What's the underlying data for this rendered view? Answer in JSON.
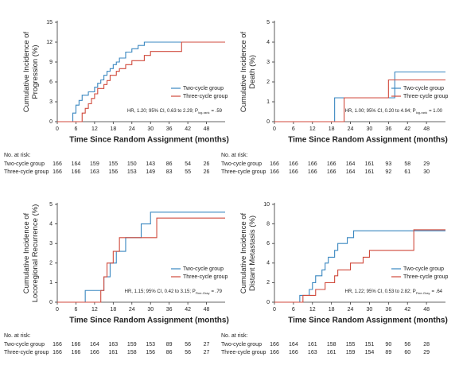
{
  "chart_data": [
    {
      "type": "line",
      "ylabel": [
        "Cumulative Incidence of",
        "Progression (%)"
      ],
      "xlabel": "Time Since Random Assignment (months)",
      "xlim": [
        0,
        54
      ],
      "xticks": [
        0,
        6,
        12,
        18,
        24,
        30,
        36,
        42,
        48
      ],
      "ylim": [
        0,
        15
      ],
      "yticks": [
        0,
        3,
        6,
        9,
        12,
        15
      ],
      "legend": "lower right",
      "series": [
        {
          "name": "Two-cycle group",
          "color": "#3a87c0",
          "x": [
            0,
            5,
            6,
            7,
            8,
            10,
            12,
            13,
            14,
            15,
            16,
            17,
            18,
            19,
            20,
            22,
            24,
            26,
            28,
            54
          ],
          "values": [
            0,
            1.3,
            2.5,
            3.2,
            4,
            4.5,
            5.2,
            5.8,
            6.3,
            7,
            7.6,
            8,
            8.6,
            9,
            9.6,
            10.5,
            11,
            11.5,
            12,
            12
          ]
        },
        {
          "name": "Three-cycle group",
          "color": "#d04a3c",
          "x": [
            0,
            8,
            9,
            10,
            11,
            12,
            13,
            15,
            16,
            17,
            19,
            20,
            22,
            24,
            28,
            30,
            40,
            54
          ],
          "values": [
            0,
            1.3,
            2,
            2.7,
            3.5,
            4.2,
            5,
            5.6,
            6.2,
            7,
            7.6,
            8,
            8.6,
            9.2,
            10,
            10.6,
            12,
            12
          ]
        }
      ],
      "annotation": {
        "text": "HR, 1.20; 95% CI, 0.63 to 2.29; P",
        "subscript": "log-rank",
        "tail": "= .59"
      },
      "at_risk": {
        "title": "No. at risk:",
        "rows": [
          {
            "name": "Two-cycle group",
            "values": [
              166,
              164,
              159,
              155,
              150,
              143,
              86,
              54,
              26
            ]
          },
          {
            "name": "Three-cycle group",
            "values": [
              166,
              166,
              163,
              156,
              153,
              149,
              83,
              55,
              26
            ]
          }
        ]
      }
    },
    {
      "type": "line",
      "ylabel": [
        "Cumulative Incidence of",
        "Death (%)"
      ],
      "xlabel": "Time Since Random Assignment (months)",
      "xlim": [
        0,
        54
      ],
      "xticks": [
        0,
        6,
        12,
        18,
        24,
        30,
        36,
        42,
        48
      ],
      "ylim": [
        0,
        5
      ],
      "yticks": [
        0,
        1,
        2,
        3,
        4,
        5
      ],
      "legend": "lower right",
      "series": [
        {
          "name": "Two-cycle group",
          "color": "#3a87c0",
          "x": [
            0,
            19,
            38,
            54
          ],
          "values": [
            0,
            1.2,
            2.5,
            2.5
          ]
        },
        {
          "name": "Three-cycle group",
          "color": "#d04a3c",
          "x": [
            0,
            22,
            36,
            54
          ],
          "values": [
            0,
            1.2,
            2.1,
            2.1
          ]
        }
      ],
      "annotation": {
        "text": "HR, 1.00; 95% CI, 0.20 to 4.94; P",
        "subscript": "log-rank",
        "tail": "= 1.00"
      },
      "at_risk": {
        "title": "No. at risk:",
        "rows": [
          {
            "name": "Two-cycle group",
            "values": [
              166,
              166,
              166,
              166,
              164,
              161,
              93,
              58,
              29
            ]
          },
          {
            "name": "Three-cycle group",
            "values": [
              166,
              166,
              166,
              166,
              164,
              161,
              92,
              61,
              30
            ]
          }
        ]
      }
    },
    {
      "type": "line",
      "ylabel": [
        "Cumulative Incidence of",
        "Locoregional Recurrence (%)"
      ],
      "xlabel": "Time Since Random Assignment (months)",
      "xlim": [
        0,
        54
      ],
      "xticks": [
        0,
        6,
        12,
        18,
        24,
        30,
        36,
        42,
        48
      ],
      "ylim": [
        0,
        5
      ],
      "yticks": [
        0,
        1,
        2,
        3,
        4,
        5
      ],
      "legend": "lower right",
      "series": [
        {
          "name": "Two-cycle group",
          "color": "#3a87c0",
          "x": [
            0,
            9,
            15,
            17,
            19,
            22,
            27,
            30,
            54
          ],
          "values": [
            0,
            0.6,
            1.3,
            2,
            2.6,
            3.3,
            4,
            4.6,
            4.6
          ]
        },
        {
          "name": "Three-cycle group",
          "color": "#d04a3c",
          "x": [
            0,
            14,
            15,
            16,
            18,
            20,
            32,
            54
          ],
          "values": [
            0,
            0.6,
            1.3,
            2,
            2.6,
            3.3,
            4.3,
            4.3
          ]
        }
      ],
      "annotation": {
        "text": "HR, 1.15; 95% CI, 0.42 to 3.15; P",
        "subscript": "Fine-Gray",
        "tail": "= .79"
      },
      "at_risk": {
        "title": "No. at risk:",
        "rows": [
          {
            "name": "Two-cycle group",
            "values": [
              166,
              166,
              164,
              163,
              159,
              153,
              89,
              56,
              27
            ]
          },
          {
            "name": "Three-cycle group",
            "values": [
              166,
              166,
              166,
              161,
              158,
              156,
              86,
              56,
              27
            ]
          }
        ]
      }
    },
    {
      "type": "line",
      "ylabel": [
        "Cumulative Incidence of",
        "Distant Metastasis (%)"
      ],
      "xlabel": "Time Since Random Assignment (months)",
      "xlim": [
        0,
        54
      ],
      "xticks": [
        0,
        6,
        12,
        18,
        24,
        30,
        36,
        42,
        48
      ],
      "ylim": [
        0,
        10
      ],
      "yticks": [
        0,
        2,
        4,
        6,
        8,
        10
      ],
      "legend": "lower right",
      "series": [
        {
          "name": "Two-cycle group",
          "color": "#3a87c0",
          "x": [
            0,
            8,
            11,
            12,
            13,
            15,
            16,
            17,
            19,
            20,
            23,
            25,
            54
          ],
          "values": [
            0,
            0.7,
            1.3,
            2,
            2.7,
            3.3,
            4,
            4.6,
            5.3,
            6,
            6.6,
            7.3,
            7.3
          ]
        },
        {
          "name": "Three-cycle group",
          "color": "#d04a3c",
          "x": [
            0,
            9,
            13,
            16,
            19,
            20,
            24,
            28,
            30,
            44,
            54
          ],
          "values": [
            0,
            0.7,
            1.3,
            2,
            2.7,
            3.3,
            4,
            4.6,
            5.3,
            7.4,
            7.4
          ]
        }
      ],
      "annotation": {
        "text": "HR, 1.22; 95% CI, 0.53 to 2.82; P",
        "subscript": "Fine-Gray",
        "tail": "= .64"
      },
      "at_risk": {
        "title": "No. at risk:",
        "rows": [
          {
            "name": "Two-cycle group",
            "values": [
              166,
              164,
              161,
              158,
              155,
              151,
              90,
              56,
              28
            ]
          },
          {
            "name": "Three-cycle group",
            "values": [
              166,
              166,
              163,
              161,
              159,
              154,
              89,
              60,
              29
            ]
          }
        ]
      }
    }
  ]
}
